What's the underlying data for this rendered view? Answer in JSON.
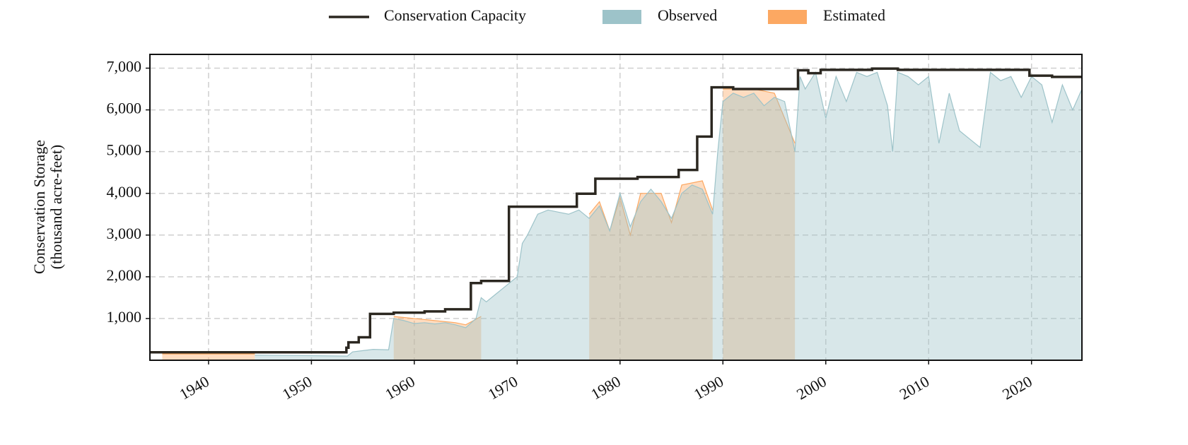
{
  "chart_data": {
    "type": "area",
    "ylabel": [
      "Conservation Storage",
      "(thousand acre-feet)"
    ],
    "xlim": [
      1934.3,
      2024.9
    ],
    "ylim": [
      0,
      7330
    ],
    "xticks": [
      1940,
      1950,
      1960,
      1970,
      1980,
      1990,
      2000,
      2010,
      2020
    ],
    "yticks": [
      {
        "value": 1000,
        "label": "1,000"
      },
      {
        "value": 2000,
        "label": "2,000"
      },
      {
        "value": 3000,
        "label": "3,000"
      },
      {
        "value": 4000,
        "label": "4,000"
      },
      {
        "value": 5000,
        "label": "5,000"
      },
      {
        "value": 6000,
        "label": "6,000"
      },
      {
        "value": 7000,
        "label": "7,000"
      }
    ],
    "grid": true,
    "legend": "top",
    "series": [
      {
        "name": "Conservation Capacity",
        "kind": "line",
        "color": "#2b2720",
        "x": [
          1934.3,
          1953.4,
          1953.4,
          1953.6,
          1953.6,
          1954.6,
          1954.6,
          1955.7,
          1955.7,
          1958,
          1958,
          1961,
          1961,
          1963,
          1963,
          1965.5,
          1965.5,
          1966.5,
          1966.5,
          1969.2,
          1969.2,
          1975.8,
          1975.8,
          1977.6,
          1977.6,
          1981.7,
          1981.7,
          1985.7,
          1985.7,
          1987.5,
          1987.5,
          1988.9,
          1988.9,
          1991,
          1991,
          1997.3,
          1997.3,
          1998.3,
          1998.3,
          1999.5,
          1999.5,
          2004.5,
          2004.5,
          2007,
          2007,
          2019.8,
          2019.8,
          2022,
          2022,
          2024.9
        ],
        "values": [
          190,
          190,
          300,
          300,
          430,
          430,
          550,
          550,
          1110,
          1110,
          1140,
          1140,
          1170,
          1170,
          1220,
          1220,
          1850,
          1850,
          1900,
          1900,
          3680,
          3680,
          3990,
          3990,
          4350,
          4350,
          4390,
          4390,
          4560,
          4560,
          5360,
          5360,
          6540,
          6540,
          6500,
          6500,
          6950,
          6950,
          6880,
          6880,
          6960,
          6960,
          6990,
          6990,
          6960,
          6960,
          6820,
          6820,
          6790,
          6790
        ]
      },
      {
        "name": "Observed",
        "kind": "area",
        "color": "#9dc3c9",
        "x": [
          1944.5,
          1950,
          1953.5,
          1954,
          1956,
          1957.5,
          1958,
          1959,
          1960,
          1961,
          1962,
          1963,
          1964,
          1965,
          1966,
          1966.5,
          1967,
          1968,
          1969,
          1970,
          1970.5,
          1971,
          1972,
          1973,
          1974,
          1975,
          1976,
          1977,
          1978,
          1979,
          1980,
          1981,
          1982,
          1983,
          1984,
          1985,
          1986,
          1987,
          1988,
          1989,
          1989.5,
          1990,
          1991,
          1992,
          1993,
          1994,
          1995,
          1996,
          1997,
          1997.5,
          1998,
          1999,
          2000,
          2001,
          2002,
          2003,
          2004,
          2005,
          2006,
          2006.5,
          2007,
          2008,
          2009,
          2010,
          2011,
          2012,
          2013,
          2014,
          2015,
          2016,
          2017,
          2018,
          2019,
          2020,
          2021,
          2022,
          2023,
          2024,
          2024.9
        ],
        "values": [
          120,
          110,
          100,
          200,
          260,
          250,
          1000,
          950,
          880,
          900,
          870,
          900,
          850,
          780,
          1000,
          1500,
          1400,
          1600,
          1800,
          2000,
          2800,
          3000,
          3500,
          3600,
          3550,
          3500,
          3600,
          3400,
          3700,
          3100,
          4000,
          3200,
          3800,
          4100,
          3800,
          3400,
          4000,
          4200,
          4100,
          3500,
          5000,
          6200,
          6400,
          6300,
          6400,
          6100,
          6300,
          6200,
          5000,
          6800,
          6500,
          6900,
          5800,
          6800,
          6200,
          6900,
          6800,
          6900,
          6100,
          5000,
          6900,
          6800,
          6600,
          6800,
          5200,
          6400,
          5500,
          5300,
          5100,
          6900,
          6700,
          6800,
          6300,
          6800,
          6600,
          5700,
          6600,
          6000,
          6500
        ]
      },
      {
        "name": "Estimated",
        "kind": "area",
        "color": "#fca862",
        "x": [
          1935.5,
          1944.5,
          1944.6,
          1958,
          1960,
          1962,
          1964,
          1965,
          1966.5,
          1976,
          1977,
          1978,
          1979,
          1980,
          1981,
          1982,
          1984,
          1985,
          1986,
          1988,
          1989,
          1989.1,
          1990,
          1993,
          1995,
          1997
        ],
        "values": [
          150,
          150,
          null,
          1050,
          1000,
          950,
          900,
          850,
          1050,
          null,
          3500,
          3800,
          3100,
          3900,
          3000,
          4000,
          4000,
          3300,
          4200,
          4300,
          3600,
          null,
          6500,
          6500,
          6400,
          5200
        ]
      }
    ]
  }
}
